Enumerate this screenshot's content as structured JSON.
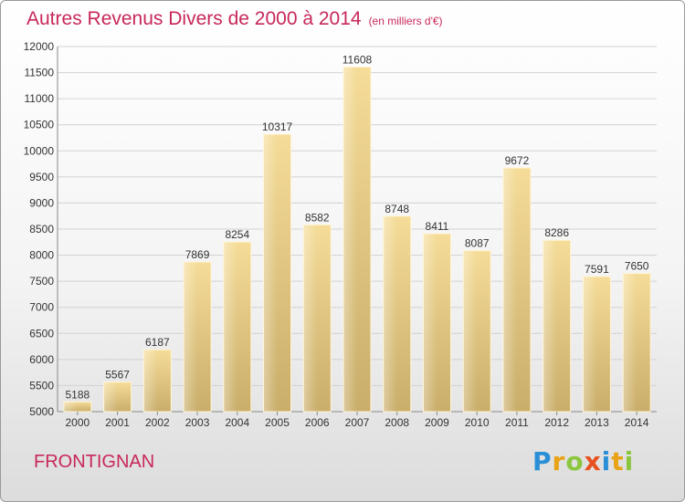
{
  "title": "Autres Revenus Divers de 2000 à 2014",
  "subtitle": "(en milliers d'€)",
  "place": "FRONTIGNAN",
  "logo": {
    "letters": [
      "P",
      "r",
      "o",
      "x",
      "i",
      "t",
      "i"
    ],
    "colors": [
      "#2a8fd6",
      "#e8a317",
      "#8cc63f",
      "#e8501f",
      "#2a8fd6",
      "#e8a317",
      "#8cc63f"
    ]
  },
  "chart_data": {
    "type": "bar",
    "title": "Autres Revenus Divers de 2000 à 2014",
    "xlabel": "",
    "ylabel": "",
    "categories": [
      "2000",
      "2001",
      "2002",
      "2003",
      "2004",
      "2005",
      "2006",
      "2007",
      "2008",
      "2009",
      "2010",
      "2011",
      "2012",
      "2013",
      "2014"
    ],
    "values": [
      5188,
      5567,
      6187,
      7869,
      8254,
      10317,
      8582,
      11608,
      8748,
      8411,
      8087,
      9672,
      8286,
      7591,
      7650
    ],
    "ylim": [
      5000,
      12000
    ],
    "yticks": [
      5000,
      5500,
      6000,
      6500,
      7000,
      7500,
      8000,
      8500,
      9000,
      9500,
      10000,
      10500,
      11000,
      11500,
      12000
    ],
    "grid": true,
    "bar_color": "#e6c57a"
  }
}
